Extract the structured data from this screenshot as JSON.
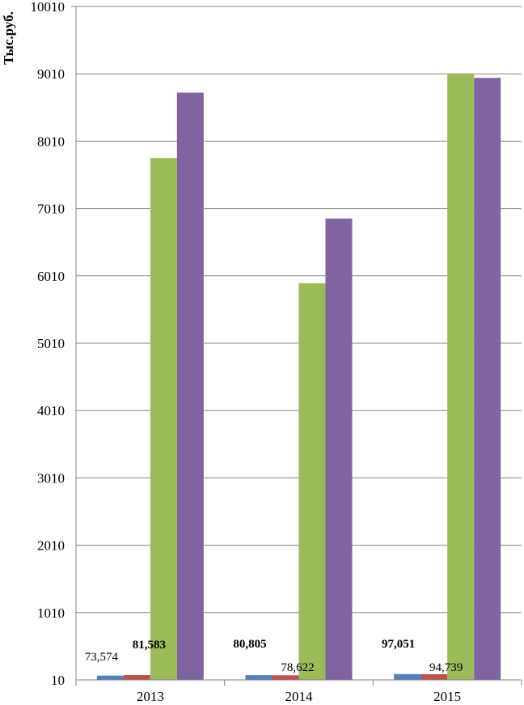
{
  "chart_data": {
    "type": "bar",
    "title": "",
    "xlabel": "",
    "ylabel": "Тыс.руб.",
    "categories": [
      "2013",
      "2014",
      "2015"
    ],
    "ylim": [
      10,
      10010
    ],
    "yticks": [
      10,
      1010,
      2010,
      3010,
      4010,
      5010,
      6010,
      7010,
      8010,
      9010,
      10010
    ],
    "grid": true,
    "legend": "none",
    "series": [
      {
        "color": "#4F81BD",
        "values": [
          73.574,
          80.805,
          97.051
        ],
        "labels": [
          "73,574",
          "80,805",
          "97,051"
        ],
        "label_bold": [
          false,
          true,
          true
        ]
      },
      {
        "color": "#C0504D",
        "values": [
          81.583,
          78.622,
          94.739
        ],
        "labels": [
          "81,583",
          "78,622",
          "94,739"
        ],
        "label_bold": [
          true,
          false,
          false
        ]
      },
      {
        "color": "#9BBB59",
        "values": [
          7760,
          5900,
          9010
        ],
        "labels": [
          null,
          null,
          null
        ],
        "label_bold": [
          false,
          false,
          false
        ]
      },
      {
        "color": "#8064A2",
        "values": [
          8730,
          6860,
          8950
        ],
        "labels": [
          null,
          null,
          null
        ],
        "label_bold": [
          false,
          false,
          false
        ]
      }
    ]
  }
}
